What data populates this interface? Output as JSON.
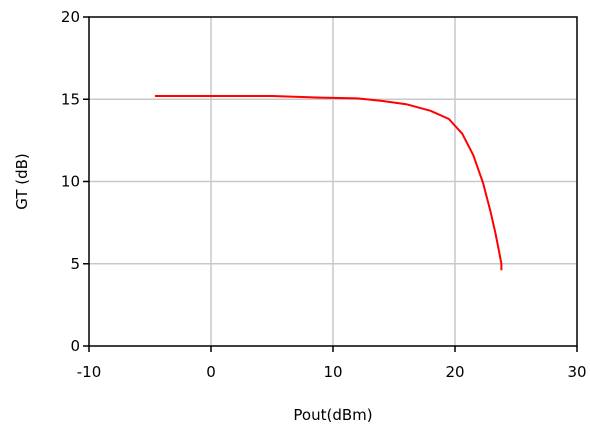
{
  "chart_data": {
    "type": "line",
    "title": "",
    "xlabel": "Pout(dBm)",
    "ylabel": "GT (dB)",
    "xlim": [
      -10,
      30
    ],
    "ylim": [
      0,
      20
    ],
    "x_ticks": [
      "-10",
      "0",
      "10",
      "20",
      "30"
    ],
    "y_ticks": [
      "0",
      "5",
      "10",
      "15",
      "20"
    ],
    "x_tick_values": [
      -10,
      0,
      10,
      20,
      30
    ],
    "y_tick_values": [
      0,
      5,
      10,
      15,
      20
    ],
    "grid": true,
    "legend": "none",
    "series": [
      {
        "color": "#ff0000",
        "x": [
          -4.6,
          0,
          5,
          9,
          12,
          14,
          16,
          18,
          19.5,
          20.6,
          21.5,
          22.3,
          22.9,
          23.3,
          23.6,
          23.8,
          23.8
        ],
        "y": [
          15.2,
          15.2,
          15.2,
          15.1,
          15.05,
          14.9,
          14.7,
          14.3,
          13.8,
          12.9,
          11.6,
          9.9,
          8.2,
          6.9,
          5.8,
          5.0,
          4.6
        ]
      }
    ]
  }
}
